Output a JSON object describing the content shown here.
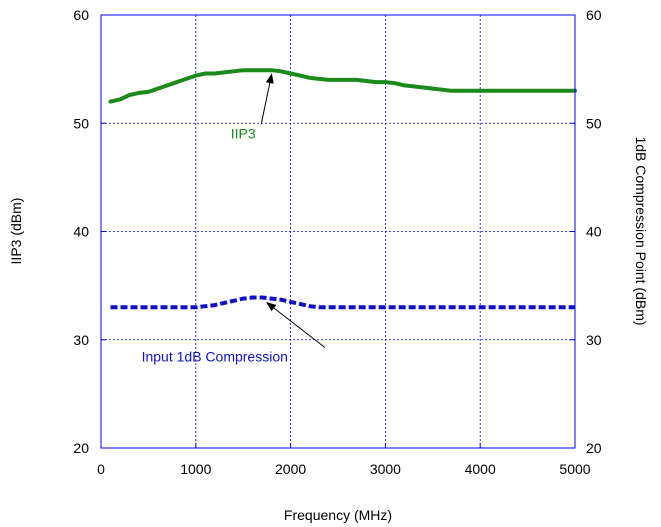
{
  "chart_data": {
    "type": "line",
    "title": "",
    "xlabel": "Frequency (MHz)",
    "ylabel": "IIP3 (dBm)",
    "y2label": "1dB Compression Point (dBm)",
    "xlim": [
      0,
      5000
    ],
    "ylim": [
      20,
      60
    ],
    "y2lim": [
      20,
      60
    ],
    "x_ticks": [
      "0",
      "1000",
      "2000",
      "3000",
      "4000",
      "5000"
    ],
    "y_ticks": [
      "20",
      "30",
      "40",
      "50",
      "60"
    ],
    "y2_ticks": [
      "20",
      "30",
      "40",
      "50",
      "60"
    ],
    "grid": true,
    "series": [
      {
        "name": "IIP3",
        "color": "#1a8a1a",
        "style": "solid",
        "x": [
          100,
          200,
          300,
          400,
          500,
          600,
          700,
          800,
          900,
          1000,
          1100,
          1200,
          1300,
          1400,
          1500,
          1600,
          1700,
          1800,
          1900,
          2000,
          2100,
          2200,
          2300,
          2400,
          2500,
          2600,
          2700,
          2800,
          2900,
          3000,
          3100,
          3200,
          3300,
          3400,
          3500,
          3600,
          3700,
          3800,
          3900,
          4000,
          4200,
          4400,
          4600,
          4800,
          5000
        ],
        "values": [
          52.0,
          52.2,
          52.6,
          52.8,
          52.9,
          53.2,
          53.5,
          53.8,
          54.1,
          54.4,
          54.6,
          54.6,
          54.7,
          54.8,
          54.9,
          54.9,
          54.9,
          54.9,
          54.8,
          54.6,
          54.4,
          54.2,
          54.1,
          54.0,
          54.0,
          54.0,
          54.0,
          53.9,
          53.8,
          53.8,
          53.7,
          53.5,
          53.4,
          53.3,
          53.2,
          53.1,
          53.0,
          53.0,
          53.0,
          53.0,
          53.0,
          53.0,
          53.0,
          53.0,
          53.0
        ]
      },
      {
        "name": "Input 1dB Compression",
        "color": "#1010c8",
        "style": "dashed",
        "x": [
          100,
          300,
          500,
          700,
          900,
          1000,
          1100,
          1200,
          1300,
          1400,
          1500,
          1600,
          1700,
          1800,
          1900,
          2000,
          2100,
          2200,
          2300,
          2500,
          2700,
          3000,
          3500,
          4000,
          4500,
          5000
        ],
        "values": [
          33.0,
          33.0,
          33.0,
          33.0,
          33.0,
          33.0,
          33.1,
          33.2,
          33.4,
          33.6,
          33.8,
          33.9,
          33.9,
          33.8,
          33.7,
          33.5,
          33.3,
          33.1,
          33.0,
          33.0,
          33.0,
          33.0,
          33.0,
          33.0,
          33.0,
          33.0
        ]
      }
    ],
    "annotations": [
      {
        "text": "IIP3",
        "color": "#1a8a1a",
        "x": 1500,
        "y": 48.6,
        "arrow_to": [
          1800,
          54.9
        ]
      },
      {
        "text": "Input 1dB Compression",
        "color": "#1010c8",
        "x": 1200,
        "y": 28.0,
        "arrow_to": [
          1750,
          33.8
        ]
      }
    ]
  }
}
